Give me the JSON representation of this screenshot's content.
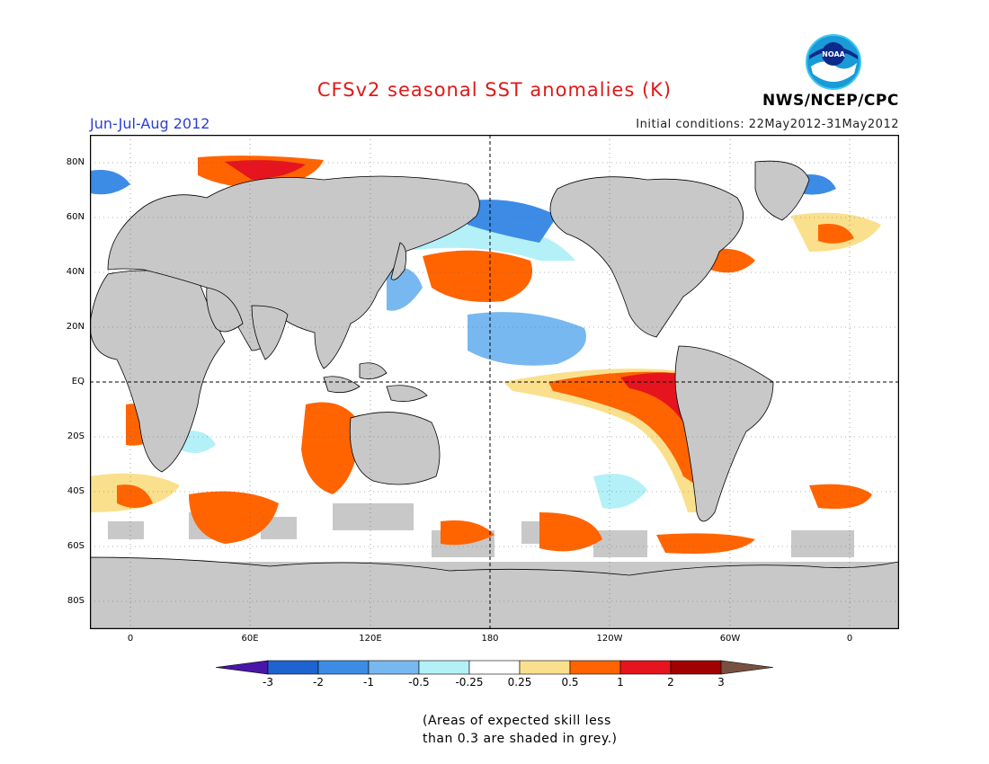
{
  "header": {
    "title": "CFSv2 seasonal SST anomalies (K)",
    "period": "Jun-Jul-Aug 2012",
    "initial_conditions": "Initial conditions: 22May2012-31May2012",
    "agency": "NWS/NCEP/CPC",
    "logo_text": "NOAA"
  },
  "map": {
    "lat_labels": [
      "80N",
      "60N",
      "40N",
      "20N",
      "EQ",
      "20S",
      "40S",
      "60S",
      "80S"
    ],
    "lon_labels": [
      "0",
      "60E",
      "120E",
      "180",
      "120W",
      "60W",
      "0"
    ],
    "land_color": "#c8c8c8"
  },
  "colorbar": {
    "labels": [
      "-3",
      "-2",
      "-1",
      "-0.5",
      "-0.25",
      "0.25",
      "0.5",
      "1",
      "2",
      "3"
    ],
    "colors": [
      "#4a16a8",
      "#1e64d0",
      "#3c8ce6",
      "#78b8f0",
      "#b4f0f8",
      "#ffffff",
      "#fae08c",
      "#ff6400",
      "#e6141e",
      "#a00000",
      "#785040"
    ]
  },
  "note": {
    "line1": "(Areas of expected skill less",
    "line2": "than 0.3 are shaded in grey.)"
  }
}
